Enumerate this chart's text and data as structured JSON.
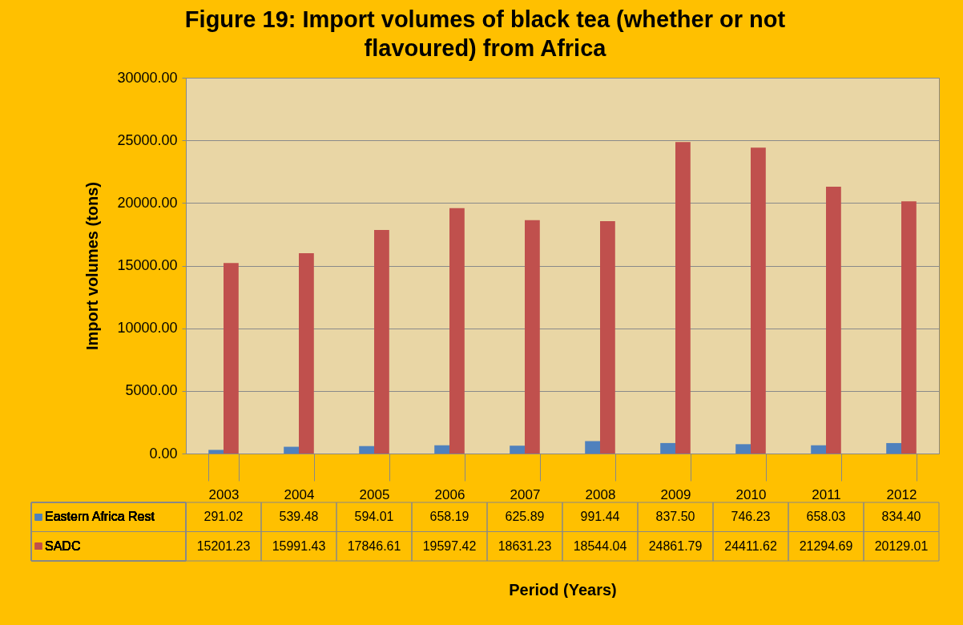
{
  "chart_data": {
    "type": "bar",
    "title": "Figure 19: Import volumes of black tea (whether or not flavoured) from Africa",
    "xlabel": "Period (Years)",
    "ylabel": "Import volumes (tons)",
    "categories": [
      "2003",
      "2004",
      "2005",
      "2006",
      "2007",
      "2008",
      "2009",
      "2010",
      "2011",
      "2012"
    ],
    "series": [
      {
        "name": "Eastern Africa Rest",
        "color": "#4f81bd",
        "values": [
          291.02,
          539.48,
          594.01,
          658.19,
          625.89,
          991.44,
          837.5,
          746.23,
          658.03,
          834.4
        ],
        "value_labels": [
          "291.02",
          "539.48",
          "594.01",
          "658.19",
          "625.89",
          "991.44",
          "837.50",
          "746.23",
          "658.03",
          "834.40"
        ]
      },
      {
        "name": "SADC",
        "color": "#c0504d",
        "values": [
          15201.23,
          15991.43,
          17846.61,
          19597.42,
          18631.23,
          18544.04,
          24861.79,
          24411.62,
          21294.69,
          20129.01
        ],
        "value_labels": [
          "15201.23",
          "15991.43",
          "17846.61",
          "19597.42",
          "18631.23",
          "18544.04",
          "24861.79",
          "24411.62",
          "21294.69",
          "20129.01"
        ]
      }
    ],
    "ylim": [
      0,
      30000
    ],
    "yticks": [
      {
        "value": 0,
        "label": "0.00"
      },
      {
        "value": 5000,
        "label": "5000.00"
      },
      {
        "value": 10000,
        "label": "10000.00"
      },
      {
        "value": 15000,
        "label": "15000.00"
      },
      {
        "value": 20000,
        "label": "20000.00"
      },
      {
        "value": 25000,
        "label": "25000.00"
      },
      {
        "value": 30000,
        "label": "30000.00"
      }
    ],
    "grid": "y",
    "legend": "bottom"
  }
}
